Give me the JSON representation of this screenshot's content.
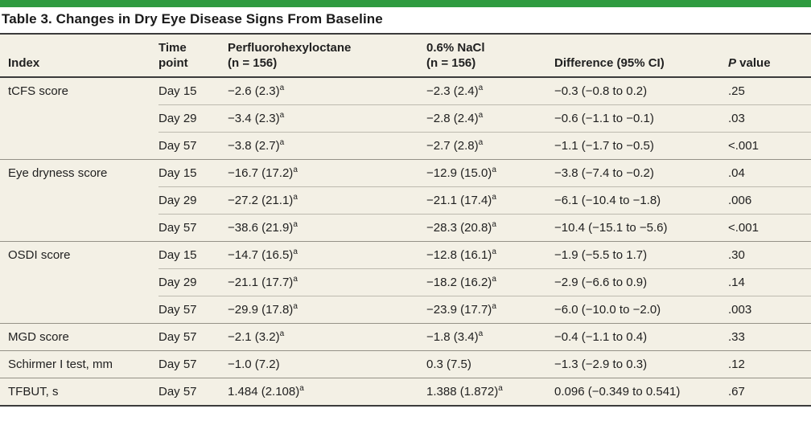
{
  "colors": {
    "accent_green": "#2f9b40",
    "row_background": "#f3f0e5",
    "rule_dark": "#3b3b3b",
    "separator_light": "#bdbaaf",
    "separator_group": "#949187"
  },
  "table": {
    "title": "Table 3. Changes in Dry Eye Disease Signs From Baseline",
    "headers": {
      "index": "Index",
      "time_line1": "Time",
      "time_line2": "point",
      "drug_line1": "Perfluorohexyloctane",
      "drug_line2": "(n = 156)",
      "nacl_line1": "0.6% NaCl",
      "nacl_line2": "(n = 156)",
      "difference": "Difference (95% CI)",
      "p_italic": "P",
      "p_rest": " value"
    },
    "footnote_marker": "a",
    "groups": [
      {
        "index": "tCFS score",
        "rows": [
          {
            "time": "Day 15",
            "drug": "−2.6 (2.3)",
            "drug_sup": "a",
            "nacl": "−2.3 (2.4)",
            "nacl_sup": "a",
            "diff": "−0.3 (−0.8 to 0.2)",
            "p": ".25"
          },
          {
            "time": "Day 29",
            "drug": "−3.4 (2.3)",
            "drug_sup": "a",
            "nacl": "−2.8 (2.4)",
            "nacl_sup": "a",
            "diff": "−0.6 (−1.1 to −0.1)",
            "p": ".03"
          },
          {
            "time": "Day 57",
            "drug": "−3.8 (2.7)",
            "drug_sup": "a",
            "nacl": "−2.7 (2.8)",
            "nacl_sup": "a",
            "diff": "−1.1 (−1.7 to −0.5)",
            "p": "<.001"
          }
        ]
      },
      {
        "index": "Eye dryness score",
        "rows": [
          {
            "time": "Day 15",
            "drug": "−16.7 (17.2)",
            "drug_sup": "a",
            "nacl": "−12.9 (15.0)",
            "nacl_sup": "a",
            "diff": "−3.8 (−7.4 to −0.2)",
            "p": ".04"
          },
          {
            "time": "Day 29",
            "drug": "−27.2 (21.1)",
            "drug_sup": "a",
            "nacl": "−21.1 (17.4)",
            "nacl_sup": "a",
            "diff": "−6.1 (−10.4 to −1.8)",
            "p": ".006"
          },
          {
            "time": "Day 57",
            "drug": "−38.6 (21.9)",
            "drug_sup": "a",
            "nacl": "−28.3 (20.8)",
            "nacl_sup": "a",
            "diff": "−10.4 (−15.1 to −5.6)",
            "p": "<.001"
          }
        ]
      },
      {
        "index": "OSDI score",
        "rows": [
          {
            "time": "Day 15",
            "drug": "−14.7 (16.5)",
            "drug_sup": "a",
            "nacl": "−12.8 (16.1)",
            "nacl_sup": "a",
            "diff": "−1.9 (−5.5 to 1.7)",
            "p": ".30"
          },
          {
            "time": "Day 29",
            "drug": "−21.1 (17.7)",
            "drug_sup": "a",
            "nacl": "−18.2 (16.2)",
            "nacl_sup": "a",
            "diff": "−2.9 (−6.6 to 0.9)",
            "p": ".14"
          },
          {
            "time": "Day 57",
            "drug": "−29.9 (17.8)",
            "drug_sup": "a",
            "nacl": "−23.9 (17.7)",
            "nacl_sup": "a",
            "diff": "−6.0 (−10.0 to −2.0)",
            "p": ".003"
          }
        ]
      },
      {
        "index": "MGD score",
        "rows": [
          {
            "time": "Day 57",
            "drug": "−2.1 (3.2)",
            "drug_sup": "a",
            "nacl": "−1.8 (3.4)",
            "nacl_sup": "a",
            "diff": "−0.4 (−1.1 to 0.4)",
            "p": ".33"
          }
        ]
      },
      {
        "index": "Schirmer I test, mm",
        "rows": [
          {
            "time": "Day 57",
            "drug": "−1.0 (7.2)",
            "nacl": "0.3 (7.5)",
            "diff": "−1.3 (−2.9 to 0.3)",
            "p": ".12"
          }
        ]
      },
      {
        "index": "TFBUT, s",
        "rows": [
          {
            "time": "Day 57",
            "drug": "1.484 (2.108)",
            "drug_sup": "a",
            "nacl": "1.388 (1.872)",
            "nacl_sup": "a",
            "diff": "0.096 (−0.349 to 0.541)",
            "p": ".67"
          }
        ]
      }
    ]
  }
}
